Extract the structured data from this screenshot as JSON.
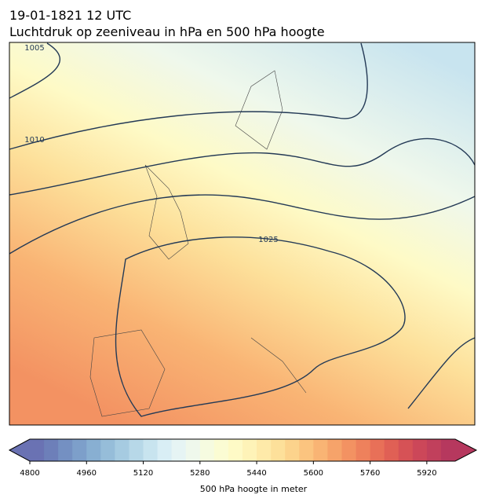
{
  "header": {
    "date": "19-01-1821 12 UTC",
    "title": "Luchtdruk op zeeniveau in hPa en 500 hPa hoogte"
  },
  "isobar_labels": [
    1005,
    1010,
    1025
  ],
  "colorbar": {
    "label": "500 hPa hoogte in meter",
    "range": [
      4800,
      6000
    ],
    "ticks": [
      4800,
      4960,
      5120,
      5280,
      5440,
      5600,
      5760,
      5920
    ],
    "colors": [
      "#6a72b3",
      "#6d7fb9",
      "#7490c2",
      "#7d9fca",
      "#88afd2",
      "#96bdd9",
      "#a6cbe1",
      "#b7d8e8",
      "#c8e4ef",
      "#d9eef5",
      "#e6f4f4",
      "#eff8ec",
      "#f6fbe0",
      "#fbfcd3",
      "#fefac6",
      "#fef3b8",
      "#feeaa9",
      "#fde09a",
      "#fcd38c",
      "#fbc47f",
      "#f9b474",
      "#f6a36a",
      "#f39262",
      "#ee815c",
      "#e87058",
      "#e06055",
      "#d65256",
      "#cc4759",
      "#c1405c",
      "#b6385e"
    ]
  }
}
